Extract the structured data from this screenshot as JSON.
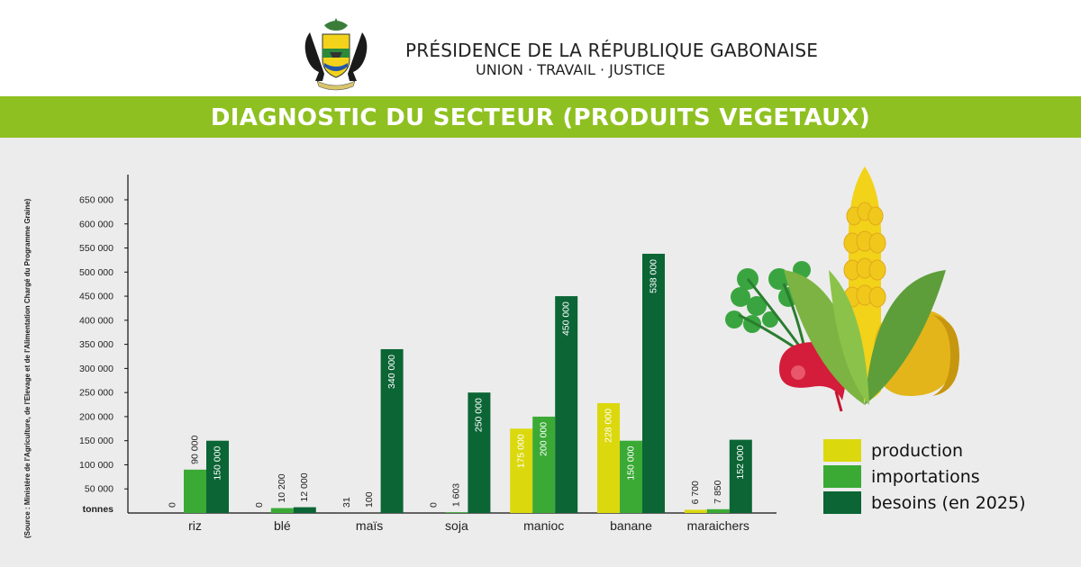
{
  "header": {
    "org_name": "PRÉSIDENCE DE LA RÉPUBLIQUE GABONAISE",
    "motto": "UNION · TRAVAIL · JUSTICE"
  },
  "title": "DIAGNOSTIC DU SECTEUR (PRODUITS VEGETAUX)",
  "source": "(Source : Ministère de l'Agriculture, de l'Elevage et de l'Alimentation Chargé du Programme Graine)",
  "colors": {
    "title_bar": "#8fc021",
    "production": "#dbd80e",
    "importations": "#3aaa35",
    "besoins": "#0b6535"
  },
  "chart_data": {
    "type": "bar",
    "title": "DIAGNOSTIC DU SECTEUR (PRODUITS VEGETAUX)",
    "ylabel": "tonnes",
    "ylim": [
      0,
      700000
    ],
    "yticks": [
      50000,
      100000,
      150000,
      200000,
      250000,
      300000,
      350000,
      400000,
      450000,
      500000,
      550000,
      600000,
      650000
    ],
    "ytick_labels": [
      "50 000",
      "100 000",
      "150 000",
      "200 000",
      "250 000",
      "300 000",
      "350 000",
      "400 000",
      "450 000",
      "500 000",
      "550 000",
      "600 000",
      "650 000"
    ],
    "categories": [
      "riz",
      "blé",
      "maïs",
      "soja",
      "manioc",
      "banane",
      "maraichers"
    ],
    "series": [
      {
        "name": "production",
        "values": [
          0,
          0,
          31,
          0,
          175000,
          228000,
          6700
        ],
        "labels": [
          "0",
          "0",
          "31",
          "0",
          "175 000",
          "228 000",
          "6 700"
        ]
      },
      {
        "name": "importations",
        "values": [
          90000,
          10200,
          100,
          1603,
          200000,
          150000,
          7850
        ],
        "labels": [
          "90 000",
          "10 200",
          "100",
          "1 603",
          "200 000",
          "150 000",
          "7 850"
        ]
      },
      {
        "name": "besoins (en 2025)",
        "values": [
          150000,
          12000,
          340000,
          250000,
          450000,
          538000,
          152000
        ],
        "labels": [
          "150 000",
          "12 000",
          "340 000",
          "250 000",
          "450 000",
          "538 000",
          "152 000"
        ]
      }
    ],
    "legend_position": "bottom-right",
    "grid": false
  }
}
